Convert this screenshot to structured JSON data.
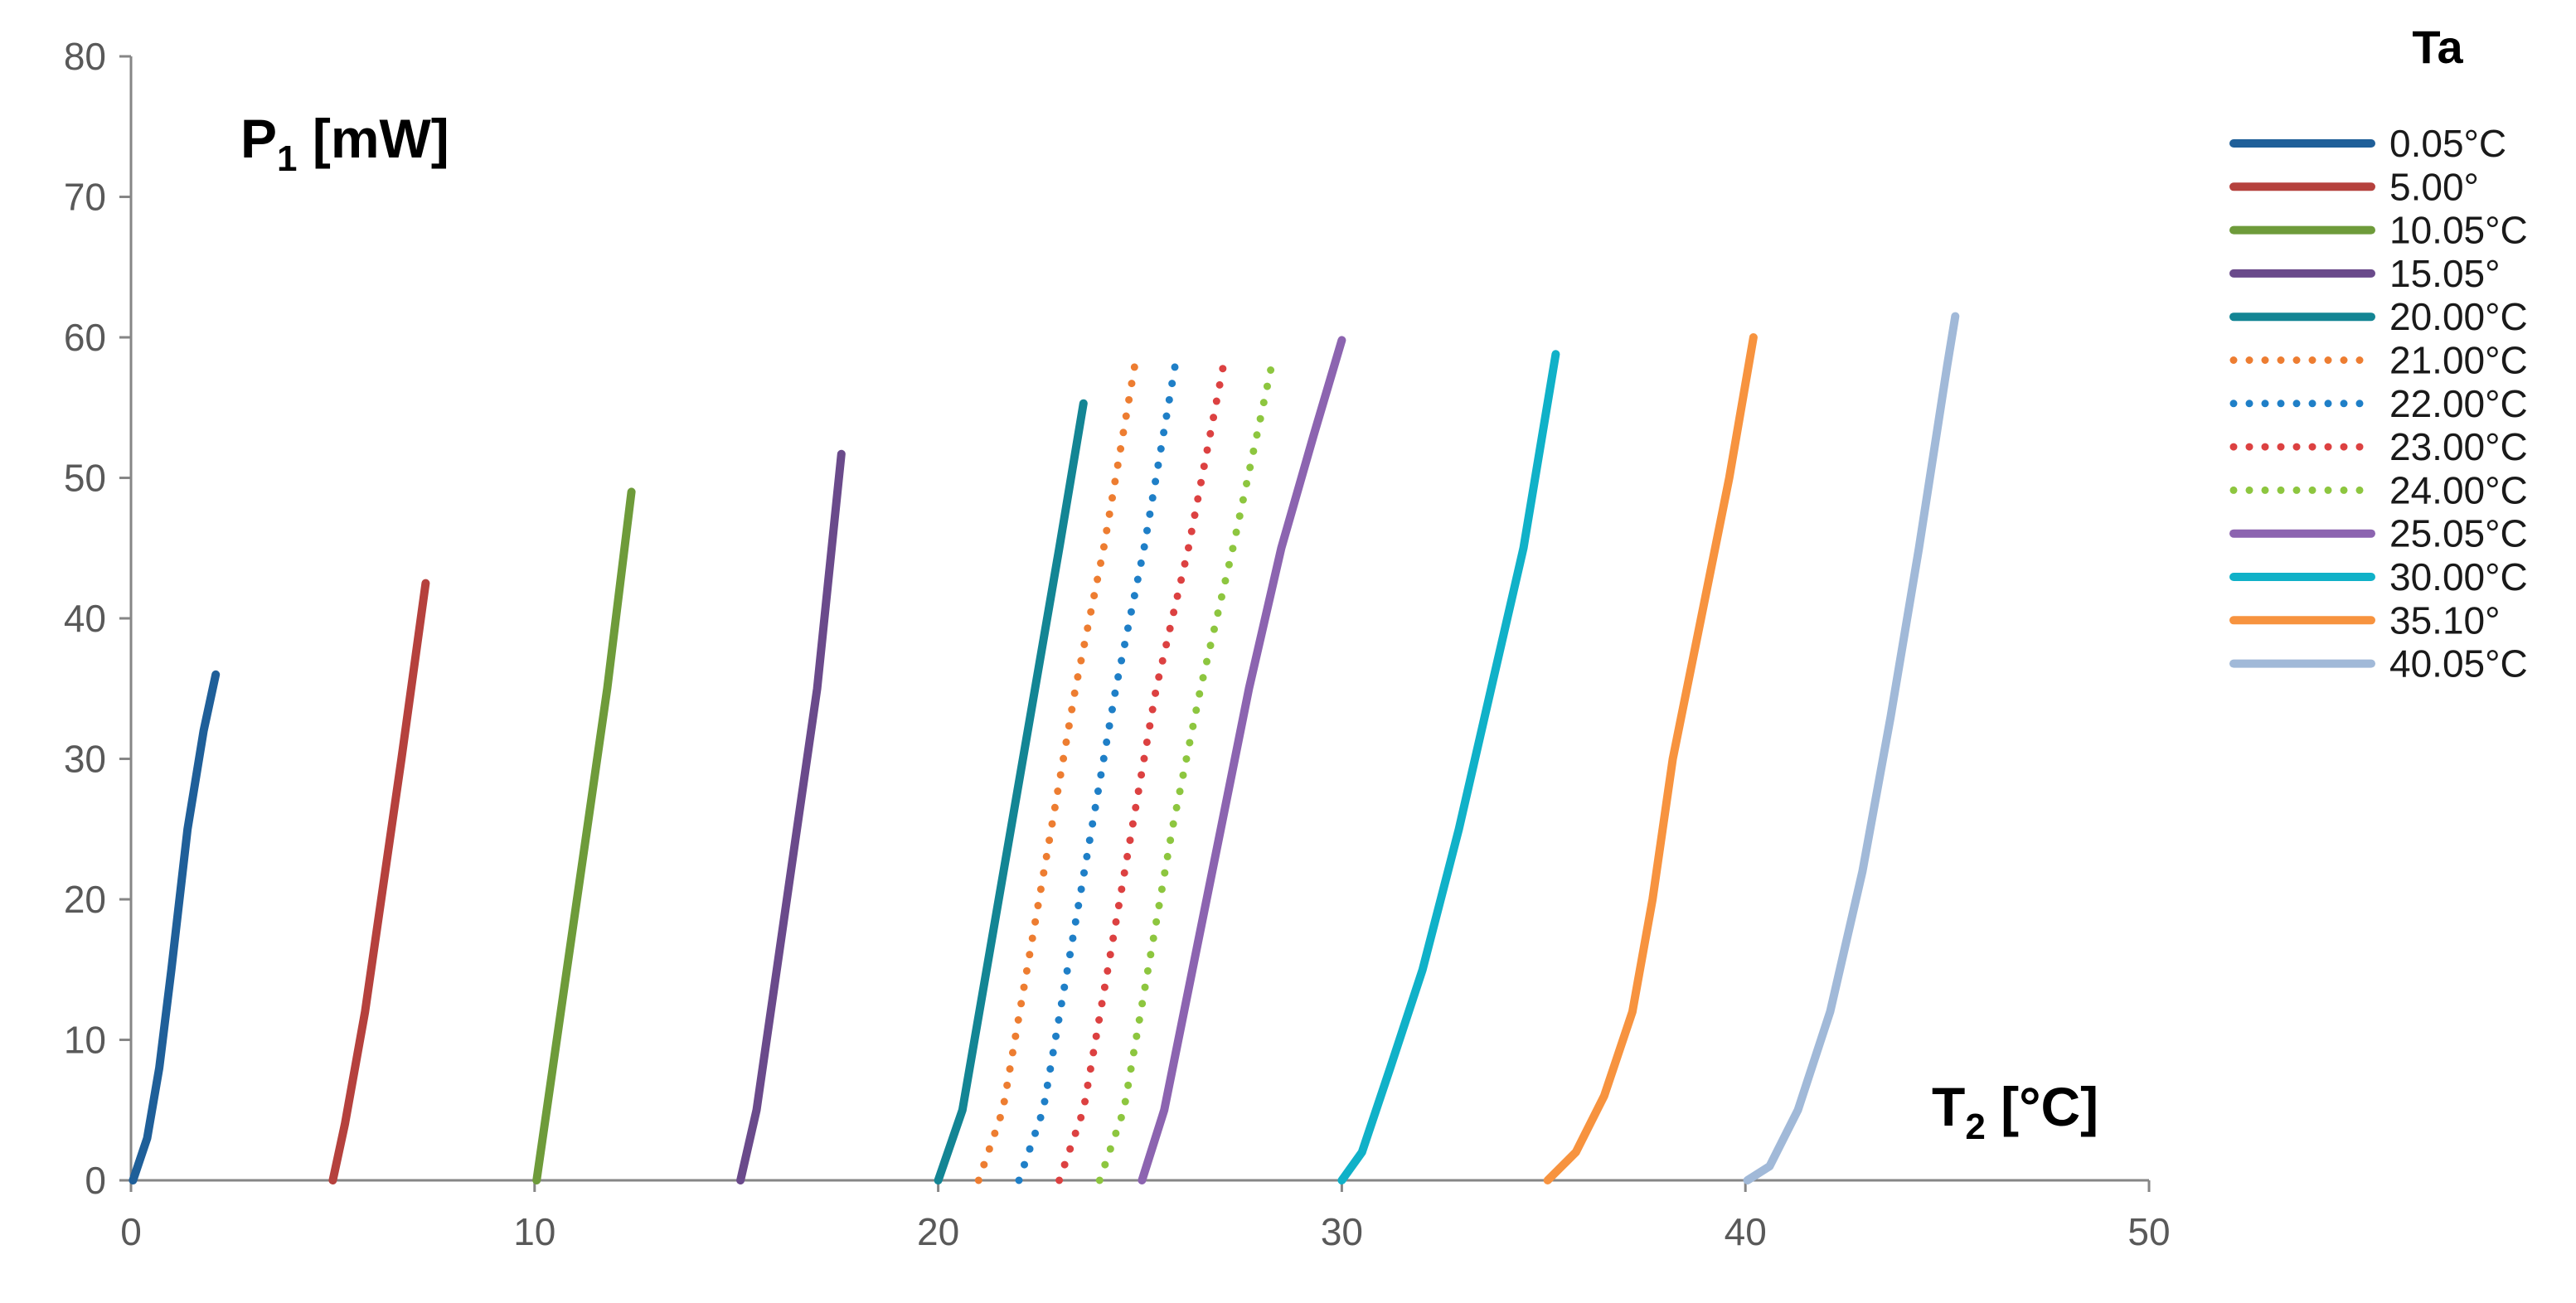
{
  "chart_data": {
    "type": "line",
    "xlim": [
      0,
      50
    ],
    "ylim": [
      0,
      80
    ],
    "x_ticks": [
      "0",
      "10",
      "20",
      "30",
      "40",
      "50"
    ],
    "y_ticks": [
      "0",
      "10",
      "20",
      "30",
      "40",
      "50",
      "60",
      "70",
      "80"
    ],
    "grid": false,
    "y_annotation": {
      "main": "P",
      "sub": "1",
      "unit": " [mW]"
    },
    "x_annotation": {
      "main": "T",
      "sub": "2",
      "unit": " [°C]"
    },
    "legend": {
      "title": "Ta",
      "placement": "right"
    },
    "series": [
      {
        "name": "0.05°C",
        "color": "#1f5f99",
        "style": "solid",
        "points": [
          [
            0.05,
            0
          ],
          [
            0.4,
            3
          ],
          [
            0.7,
            8
          ],
          [
            1.0,
            15
          ],
          [
            1.4,
            25
          ],
          [
            1.8,
            32
          ],
          [
            2.1,
            36
          ]
        ]
      },
      {
        "name": "5.00°",
        "color": "#b5413d",
        "style": "solid",
        "points": [
          [
            5.0,
            0
          ],
          [
            5.3,
            4
          ],
          [
            5.8,
            12
          ],
          [
            6.2,
            20
          ],
          [
            6.7,
            30
          ],
          [
            7.3,
            42.5
          ]
        ]
      },
      {
        "name": "10.05°C",
        "color": "#6e9b3a",
        "style": "solid",
        "points": [
          [
            10.05,
            0
          ],
          [
            10.3,
            5
          ],
          [
            10.8,
            15
          ],
          [
            11.3,
            25
          ],
          [
            11.8,
            35
          ],
          [
            12.4,
            49
          ]
        ]
      },
      {
        "name": "15.05°",
        "color": "#6a4a8b",
        "style": "solid",
        "points": [
          [
            15.1,
            0
          ],
          [
            15.5,
            5
          ],
          [
            16.0,
            15
          ],
          [
            16.5,
            25
          ],
          [
            17.0,
            35
          ],
          [
            17.6,
            51.7
          ]
        ]
      },
      {
        "name": "20.00°C",
        "color": "#138594",
        "style": "solid",
        "points": [
          [
            20.0,
            0
          ],
          [
            20.6,
            5
          ],
          [
            21.2,
            15
          ],
          [
            21.8,
            25
          ],
          [
            22.4,
            35
          ],
          [
            23.0,
            45
          ],
          [
            23.6,
            55.3
          ]
        ]
      },
      {
        "name": "21.00°C",
        "color": "#ed7d31",
        "style": "dotted",
        "points": [
          [
            21.0,
            0
          ],
          [
            21.6,
            5
          ],
          [
            22.2,
            15
          ],
          [
            22.8,
            25
          ],
          [
            23.4,
            35
          ],
          [
            24.1,
            45
          ],
          [
            24.9,
            58.5
          ]
        ]
      },
      {
        "name": "22.00°C",
        "color": "#1f7fc7",
        "style": "dotted",
        "points": [
          [
            22.0,
            0
          ],
          [
            22.6,
            5
          ],
          [
            23.2,
            15
          ],
          [
            23.8,
            25
          ],
          [
            24.4,
            35
          ],
          [
            25.1,
            45
          ],
          [
            25.9,
            58.5
          ]
        ]
      },
      {
        "name": "23.00°C",
        "color": "#dc4141",
        "style": "dotted",
        "points": [
          [
            23.0,
            0
          ],
          [
            23.6,
            5
          ],
          [
            24.2,
            15
          ],
          [
            24.8,
            25
          ],
          [
            25.4,
            35
          ],
          [
            26.2,
            45
          ],
          [
            27.1,
            58.5
          ]
        ]
      },
      {
        "name": "24.00°C",
        "color": "#8dc63f",
        "style": "dotted",
        "points": [
          [
            24.0,
            0
          ],
          [
            24.6,
            5
          ],
          [
            25.2,
            15
          ],
          [
            25.8,
            25
          ],
          [
            26.5,
            35
          ],
          [
            27.3,
            45
          ],
          [
            28.3,
            58.5
          ]
        ]
      },
      {
        "name": "25.05°C",
        "color": "#8c64b0",
        "style": "solid",
        "points": [
          [
            25.05,
            0
          ],
          [
            25.6,
            5
          ],
          [
            26.3,
            15
          ],
          [
            27.0,
            25
          ],
          [
            27.7,
            35
          ],
          [
            28.5,
            45
          ],
          [
            29.3,
            53
          ],
          [
            30.0,
            59.8
          ]
        ]
      },
      {
        "name": "30.00°C",
        "color": "#10b1c8",
        "style": "solid",
        "points": [
          [
            30.0,
            0
          ],
          [
            30.5,
            2
          ],
          [
            31.2,
            8
          ],
          [
            32.0,
            15
          ],
          [
            32.9,
            25
          ],
          [
            33.7,
            35
          ],
          [
            34.5,
            45
          ],
          [
            35.3,
            58.8
          ]
        ]
      },
      {
        "name": "35.10°",
        "color": "#f7933f",
        "style": "solid",
        "points": [
          [
            35.1,
            0
          ],
          [
            35.8,
            2
          ],
          [
            36.5,
            6
          ],
          [
            37.2,
            12
          ],
          [
            37.7,
            20
          ],
          [
            38.2,
            30
          ],
          [
            38.9,
            40
          ],
          [
            39.6,
            50
          ],
          [
            40.2,
            60
          ]
        ]
      },
      {
        "name": "40.05°C",
        "color": "#a1b9d8",
        "style": "solid",
        "points": [
          [
            40.05,
            0
          ],
          [
            40.6,
            1
          ],
          [
            41.3,
            5
          ],
          [
            42.1,
            12
          ],
          [
            42.9,
            22
          ],
          [
            43.6,
            33
          ],
          [
            44.3,
            45
          ],
          [
            45.0,
            58
          ],
          [
            45.2,
            61.5
          ]
        ]
      }
    ]
  }
}
